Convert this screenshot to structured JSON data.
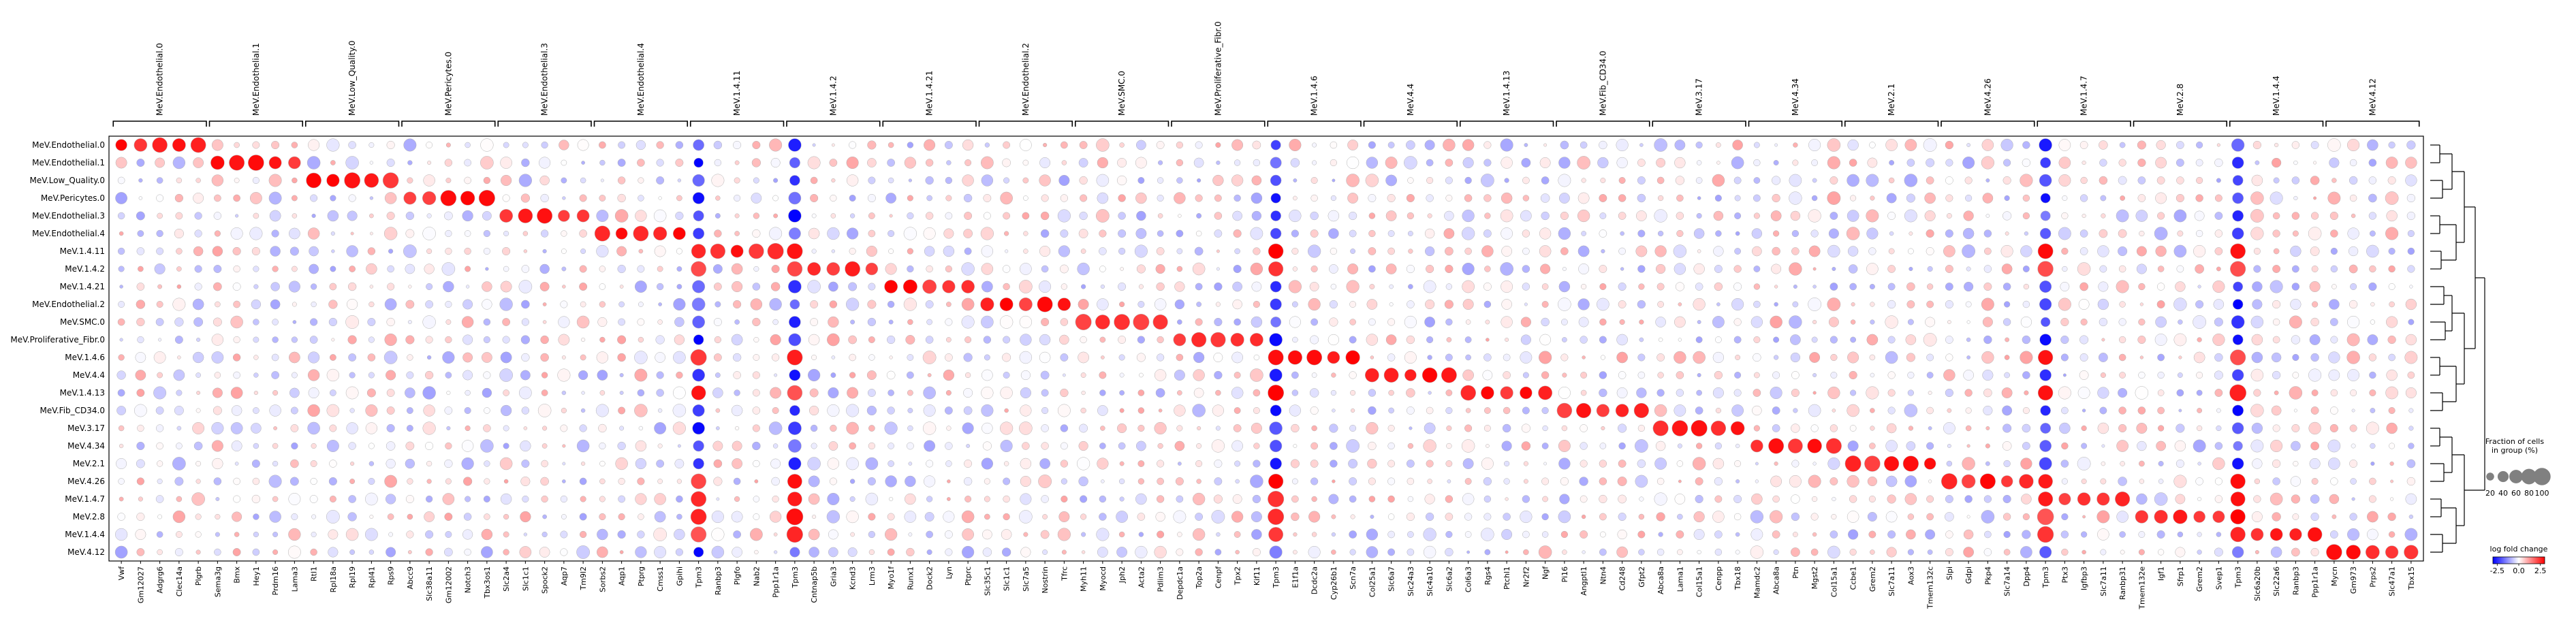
{
  "chart_data": {
    "type": "dotplot",
    "title": "",
    "xlabel": "",
    "ylabel": "",
    "group_labels": [
      "MeV.Endothelial.0",
      "MeV.Endothelial.1",
      "MeV.Low_Quality.0",
      "MeV.Pericytes.0",
      "MeV.Endothelial.3",
      "MeV.Endothelial.4",
      "MeV.1.4.11",
      "MeV.1.4.2",
      "MeV.1.4.21",
      "MeV.Endothelial.2",
      "MeV.SMC.0",
      "MeV.Proliferative_Fibr.0",
      "MeV.1.4.6",
      "MeV.4.4",
      "MeV.1.4.13",
      "MeV.Fib_CD34.0",
      "MeV.3.17",
      "MeV.4.34",
      "MeV.2.1",
      "MeV.4.26",
      "MeV.1.4.7",
      "MeV.2.8",
      "MeV.1.4.4",
      "MeV.4.12"
    ],
    "gene_groups": [
      {
        "label": "MeV.Endothelial.0",
        "genes": [
          "Vwf",
          "Gm12027",
          "Adgrg6",
          "Clec14a",
          "Plgrb"
        ]
      },
      {
        "label": "MeV.Endothelial.1",
        "genes": [
          "Sema3g",
          "Bmx",
          "Hey1",
          "Prdm16",
          "Lama3"
        ]
      },
      {
        "label": "MeV.Low_Quality.0",
        "genes": [
          "Rtl1",
          "Rpl18a",
          "Rpl19",
          "Rpl41",
          "Rps9"
        ]
      },
      {
        "label": "MeV.Pericytes.0",
        "genes": [
          "Abcc9",
          "Slc38a11",
          "Gm12002",
          "Notch3",
          "Tbx3os1"
        ]
      },
      {
        "label": "MeV.Endothelial.3",
        "genes": [
          "Slc2a4",
          "Slc1c1",
          "Spock2",
          "Aqp7",
          "Tm9l2"
        ]
      },
      {
        "label": "MeV.Endothelial.4",
        "genes": [
          "Sorbs2",
          "Aqp1",
          "Ptprg",
          "Cmss1",
          "Gpihi"
        ]
      },
      {
        "label": "MeV.1.4.11",
        "genes": [
          "Tpm3",
          "Ranbp3",
          "Plgfo",
          "Nab2",
          "Ppp1r1a"
        ]
      },
      {
        "label": "MeV.1.4.2",
        "genes": [
          "Tpm3",
          "Cntnap5b",
          "Gria3",
          "Kcnd3",
          "Lrm3"
        ]
      },
      {
        "label": "MeV.1.4.21",
        "genes": [
          "Myo1f",
          "Runx1",
          "Dock2",
          "Lyn",
          "Ptprc"
        ]
      },
      {
        "label": "MeV.Endothelial.2",
        "genes": [
          "Slc35c1",
          "Slc1c1",
          "Slc7a5",
          "Nostrin",
          "Tfrc"
        ]
      },
      {
        "label": "MeV.SMC.0",
        "genes": [
          "Myh11",
          "Myocd",
          "Jph2",
          "Acta2",
          "Pdlim3"
        ]
      },
      {
        "label": "MeV.Proliferative_Fibr.0",
        "genes": [
          "Depdc1a",
          "Top2a",
          "Cenpf",
          "Tpx2",
          "Kif11"
        ]
      },
      {
        "label": "MeV.1.4.6",
        "genes": [
          "Tpm3",
          "E1f1a",
          "Dcdc2a",
          "Cyp26b1",
          "Scn7a"
        ]
      },
      {
        "label": "MeV.4.4",
        "genes": [
          "Col25a1",
          "Slc6a7",
          "Slc24a3",
          "Slc4a10",
          "Slc6a2"
        ]
      },
      {
        "label": "MeV.1.4.13",
        "genes": [
          "Col6a3",
          "Rgs4",
          "Ptchl1",
          "Nr2f2",
          "Ngf"
        ]
      },
      {
        "label": "MeV.Fib_CD34.0",
        "genes": [
          "Pi16",
          "Angptl1",
          "Ntn4",
          "Cd248",
          "Gfpt2"
        ]
      },
      {
        "label": "MeV.3.17",
        "genes": [
          "Abca8a",
          "Lama1",
          "Col15a1",
          "Cenpp",
          "Tbx18"
        ]
      },
      {
        "label": "MeV.4.34",
        "genes": [
          "Mamdc2",
          "Abca8a",
          "Ptn",
          "Mgst2",
          "Col15a1"
        ]
      },
      {
        "label": "MeV.2.1",
        "genes": [
          "Ccbe1",
          "Grem2",
          "Slc7a11",
          "Aox3",
          "Tmem132c"
        ]
      },
      {
        "label": "MeV.4.26",
        "genes": [
          "Slpi",
          "Gdpi",
          "Pkp4",
          "Slc7a14",
          "Dpp4"
        ]
      },
      {
        "label": "MeV.1.4.7",
        "genes": [
          "Tpm3",
          "Ptx3",
          "Igfbp3",
          "Slc7a11",
          "Ranbp31"
        ]
      },
      {
        "label": "MeV.2.8",
        "genes": [
          "Tmem132e",
          "Igf1",
          "Sfrp1",
          "Grem2",
          "Svep1"
        ]
      },
      {
        "label": "MeV.1.4.4",
        "genes": [
          "Tpm3",
          "Slc6a20b",
          "Slc22a6",
          "Ranbp3",
          "Ppp1r1a"
        ]
      },
      {
        "label": "MeV.4.12",
        "genes": [
          "Mycn",
          "Gm973",
          "Prps2",
          "Slc47a1",
          "Tbx15"
        ]
      }
    ],
    "legend_size": {
      "title": "Fraction of cells\nin group (%)",
      "ticks": [
        "20",
        "40",
        "60",
        "80",
        "100"
      ],
      "values": [
        20,
        40,
        60,
        80,
        100
      ]
    },
    "legend_color": {
      "title": "log fold change",
      "ticks": [
        "-2.5",
        "0.0",
        "2.5"
      ],
      "range": [
        -3,
        3
      ],
      "colormap": "bwr",
      "negative_color": "#0000ff",
      "zero_color": "#ffffff",
      "positive_color": "#ff0000"
    },
    "dendrogram": true,
    "note_values": "dot color = log fold change of gene (column) in group (row); dot size = fraction of cells expressing"
  }
}
